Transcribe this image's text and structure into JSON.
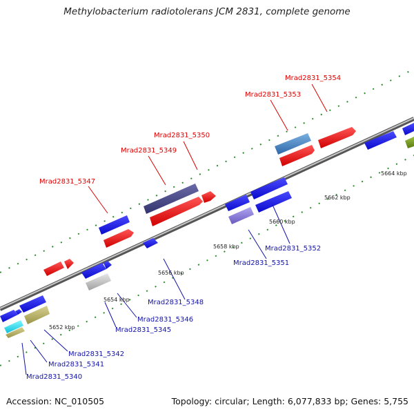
{
  "title": "Methylobacterium radiotolerans JCM 2831, complete genome",
  "footer": {
    "accession": "Accession: NC_010505",
    "summary": "Topology: circular; Length: 6,077,833 bp; Genes: 5,755"
  },
  "scale_labels": [
    "5652 kbp",
    "5654 kbp",
    "5656 kbp",
    "5658 kbp",
    "5660 kbp",
    "5662 kbp",
    "5664 kbp"
  ],
  "genes_top": [
    "Mrad2831_5347",
    "Mrad2831_5349",
    "Mrad2831_5350",
    "Mrad2831_5353",
    "Mrad2831_5354"
  ],
  "genes_bottom": [
    "Mrad2831_5340",
    "Mrad2831_5341",
    "Mrad2831_5342",
    "Mrad2831_5345",
    "Mrad2831_5346",
    "Mrad2831_5348",
    "Mrad2831_5351",
    "Mrad2831_5352"
  ],
  "colors": {
    "red": "#ee1111",
    "blue": "#1a1aee",
    "dark_slate": "#4a4a8c",
    "steel_blue": "#4a86c0",
    "lavender": "#8a7ad8",
    "olive": "#7a9a20",
    "khaki": "#bdb66a",
    "cyan": "#22e0f0",
    "gray": "#bdbdbd",
    "dash": "#2a8a2a"
  }
}
